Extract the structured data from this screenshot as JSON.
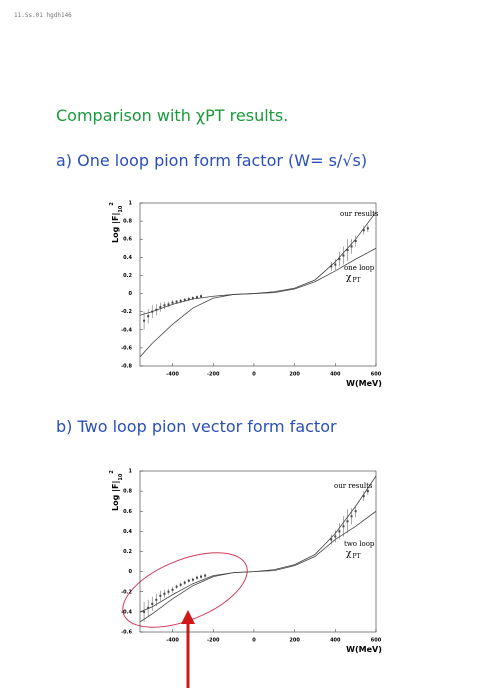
{
  "header": {
    "code": "11.Ss.01 hgdh146"
  },
  "title": "Comparison with χPT results.",
  "sections": [
    {
      "heading": "a) One loop pion form factor (W= s/√s)",
      "chart": {
        "type": "line",
        "x_label": "W(MeV)",
        "y_label": "Log |F|",
        "y_label_sub": "10",
        "y_label_sup": "2",
        "xlim": [
          -560,
          600
        ],
        "ylim": [
          -0.8,
          1
        ],
        "xticks": [
          -400,
          -200,
          0,
          200,
          400,
          600
        ],
        "yticks": [
          -0.8,
          -0.6,
          -0.4,
          -0.2,
          0,
          0.2,
          0.4,
          0.6,
          0.8,
          1
        ],
        "annotations": [
          "our results",
          "one loop",
          "χ",
          "PT"
        ],
        "series": [
          {
            "x": [
              -560,
              -500,
              -400,
              -300,
              -200,
              -100,
              0,
              100,
              200,
              300,
              400,
              500,
              600
            ],
            "values": [
              -0.24,
              -0.2,
              -0.12,
              -0.06,
              -0.03,
              -0.01,
              0,
              0.02,
              0.06,
              0.15,
              0.35,
              0.6,
              0.9
            ]
          },
          {
            "x": [
              -560,
              -500,
              -400,
              -300,
              -200,
              -100,
              0,
              100,
              200,
              300,
              400,
              500,
              600
            ],
            "values": [
              -0.7,
              -0.55,
              -0.34,
              -0.16,
              -0.05,
              -0.01,
              0,
              0.01,
              0.05,
              0.13,
              0.25,
              0.38,
              0.5
            ]
          }
        ],
        "points": {
          "x": [
            -540,
            -520,
            -500,
            -480,
            -460,
            -440,
            -420,
            -400,
            -380,
            -360,
            -340,
            -320,
            -300,
            -280,
            -260,
            380,
            400,
            420,
            440,
            460,
            480,
            500,
            540,
            560
          ],
          "values": [
            -0.3,
            -0.25,
            -0.2,
            -0.18,
            -0.15,
            -0.13,
            -0.12,
            -0.1,
            -0.09,
            -0.08,
            -0.07,
            -0.06,
            -0.05,
            -0.04,
            -0.03,
            0.3,
            0.32,
            0.38,
            0.42,
            0.48,
            0.52,
            0.58,
            0.7,
            0.72
          ],
          "errors": [
            0.1,
            0.08,
            0.07,
            0.06,
            0.05,
            0.04,
            0.03,
            0.03,
            0.02,
            0.02,
            0.02,
            0.02,
            0.02,
            0.02,
            0.02,
            0.05,
            0.06,
            0.08,
            0.1,
            0.12,
            0.08,
            0.06,
            0.05,
            0.04
          ]
        }
      }
    },
    {
      "heading": "b) Two loop pion vector form factor",
      "chart": {
        "type": "line",
        "x_label": "W(MeV)",
        "y_label": "Log |F|",
        "y_label_sub": "10",
        "y_label_sup": "2",
        "xlim": [
          -560,
          600
        ],
        "ylim": [
          -0.6,
          1
        ],
        "xticks": [
          -400,
          -200,
          0,
          200,
          400,
          600
        ],
        "yticks": [
          -0.6,
          -0.4,
          -0.2,
          0,
          0.2,
          0.4,
          0.6,
          0.8,
          1
        ],
        "annotations": [
          "our results",
          "two loop",
          "χ",
          "PT"
        ],
        "series": [
          {
            "x": [
              -560,
              -500,
              -400,
              -300,
              -200,
              -100,
              0,
              100,
              200,
              300,
              400,
              500,
              600
            ],
            "values": [
              -0.4,
              -0.35,
              -0.23,
              -0.12,
              -0.04,
              -0.01,
              0,
              0.02,
              0.07,
              0.17,
              0.38,
              0.65,
              0.95
            ]
          },
          {
            "x": [
              -560,
              -500,
              -400,
              -300,
              -200,
              -100,
              0,
              100,
              200,
              300,
              400,
              500,
              600
            ],
            "values": [
              -0.5,
              -0.42,
              -0.27,
              -0.14,
              -0.05,
              -0.01,
              0,
              0.01,
              0.06,
              0.15,
              0.32,
              0.45,
              0.6
            ]
          }
        ],
        "points": {
          "x": [
            -540,
            -520,
            -500,
            -480,
            -460,
            -440,
            -420,
            -400,
            -380,
            -360,
            -340,
            -320,
            -300,
            -280,
            -260,
            -240,
            380,
            400,
            420,
            440,
            460,
            480,
            500,
            540,
            560
          ],
          "values": [
            -0.4,
            -0.36,
            -0.32,
            -0.28,
            -0.24,
            -0.22,
            -0.2,
            -0.18,
            -0.15,
            -0.13,
            -0.11,
            -0.09,
            -0.08,
            -0.06,
            -0.05,
            -0.04,
            0.32,
            0.35,
            0.4,
            0.45,
            0.5,
            0.55,
            0.6,
            0.75,
            0.8
          ],
          "errors": [
            0.1,
            0.08,
            0.07,
            0.06,
            0.05,
            0.04,
            0.03,
            0.03,
            0.02,
            0.02,
            0.02,
            0.02,
            0.02,
            0.02,
            0.02,
            0.02,
            0.05,
            0.06,
            0.08,
            0.1,
            0.12,
            0.08,
            0.06,
            0.05,
            0.04
          ]
        }
      }
    }
  ]
}
